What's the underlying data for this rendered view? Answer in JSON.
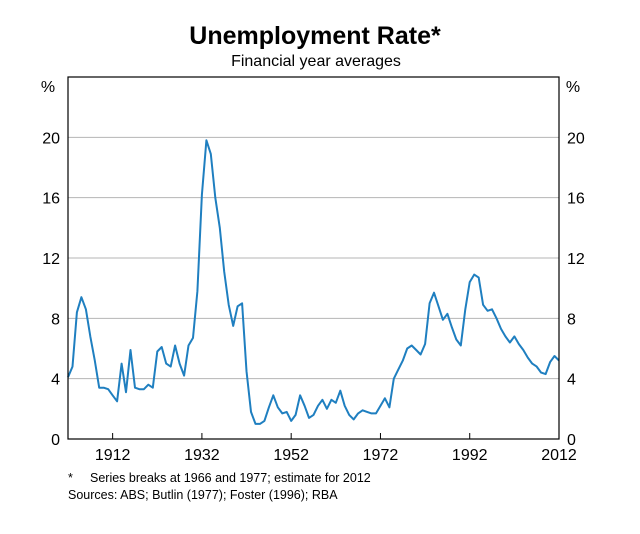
{
  "chart_data": {
    "type": "line",
    "title": "Unemployment Rate*",
    "subtitle": "Financial year averages",
    "y_unit_left": "%",
    "y_unit_right": "%",
    "xlim": [
      1902,
      2012
    ],
    "ylim": [
      0,
      24
    ],
    "x_ticks": [
      1912,
      1932,
      1952,
      1972,
      1992,
      2012
    ],
    "y_ticks": [
      0,
      4,
      8,
      12,
      16,
      20
    ],
    "grid": true,
    "series_color": "#1f7fc0",
    "series": [
      {
        "x": [
          1902,
          1903,
          1904,
          1905,
          1906,
          1907,
          1908,
          1909,
          1910,
          1911,
          1912,
          1913,
          1914,
          1915,
          1916,
          1917,
          1918,
          1919,
          1920,
          1921,
          1922,
          1923,
          1924,
          1925,
          1926,
          1927,
          1928,
          1929,
          1930,
          1931,
          1932,
          1933,
          1934,
          1935,
          1936,
          1937,
          1938,
          1939,
          1940,
          1941,
          1942,
          1943,
          1944,
          1945,
          1946,
          1947,
          1948,
          1949,
          1950,
          1951,
          1952,
          1953,
          1954,
          1955,
          1956,
          1957,
          1958,
          1959,
          1960,
          1961,
          1962,
          1963,
          1964,
          1965,
          1966,
          1967,
          1968,
          1969,
          1970,
          1971,
          1972,
          1973,
          1974,
          1975,
          1976,
          1977,
          1978,
          1979,
          1980,
          1981,
          1982,
          1983,
          1984,
          1985,
          1986,
          1987,
          1988,
          1989,
          1990,
          1991,
          1992,
          1993,
          1994,
          1995,
          1996,
          1997,
          1998,
          1999,
          2000,
          2001,
          2002,
          2003,
          2004,
          2005,
          2006,
          2007,
          2008,
          2009,
          2010,
          2011,
          2012
        ],
        "y": [
          4.1,
          4.8,
          8.4,
          9.4,
          8.6,
          6.8,
          5.2,
          3.4,
          3.4,
          3.3,
          2.9,
          2.5,
          5.0,
          3.1,
          5.9,
          3.4,
          3.3,
          3.3,
          3.6,
          3.4,
          5.8,
          6.1,
          5.0,
          4.8,
          6.2,
          5.0,
          4.2,
          6.2,
          6.7,
          9.8,
          16.2,
          19.8,
          18.9,
          16.0,
          14.0,
          11.1,
          8.9,
          7.5,
          8.8,
          9.0,
          4.5,
          1.8,
          1.0,
          1.0,
          1.2,
          2.1,
          2.9,
          2.1,
          1.7,
          1.8,
          1.2,
          1.6,
          2.9,
          2.2,
          1.4,
          1.6,
          2.2,
          2.6,
          2.0,
          2.6,
          2.4,
          3.2,
          2.2,
          1.6,
          1.3,
          1.7,
          1.9,
          1.8,
          1.7,
          1.7,
          2.2,
          2.7,
          2.1,
          4.0,
          4.6,
          5.2,
          6.0,
          6.2,
          5.9,
          5.6,
          6.3,
          9.0,
          9.7,
          8.8,
          7.9,
          8.3,
          7.4,
          6.6,
          6.2,
          8.6,
          10.4,
          10.9,
          10.7,
          8.9,
          8.5,
          8.6,
          8.0,
          7.3,
          6.8,
          6.4,
          6.8,
          6.3,
          5.9,
          5.4,
          5.0,
          4.8,
          4.4,
          4.3,
          5.1,
          5.5,
          5.2
        ]
      }
    ]
  },
  "footnote": {
    "marker": "*",
    "text": "Series breaks at 1966 and 1977; estimate for 2012",
    "sources": "Sources: ABS; Butlin (1977); Foster (1996); RBA"
  }
}
